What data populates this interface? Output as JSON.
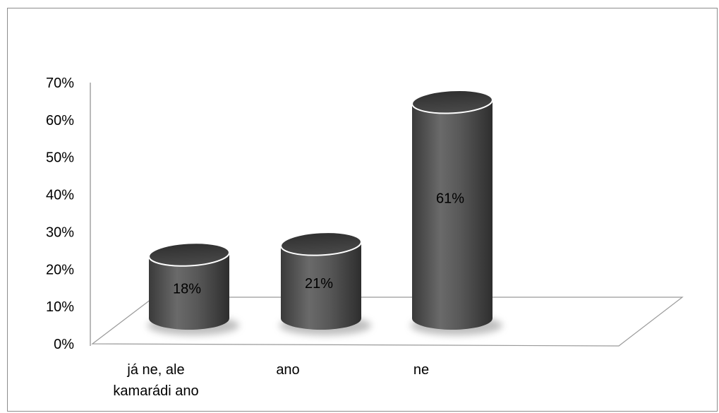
{
  "chart_data": {
    "type": "bar",
    "style": "3d-cylinder",
    "categories": [
      [
        "já ne, ale",
        "kamarádi ano"
      ],
      [
        "ano"
      ],
      [
        "ne"
      ]
    ],
    "values": [
      18,
      21,
      61
    ],
    "data_labels": [
      "18%",
      "21%",
      "61%"
    ],
    "ylim": [
      0,
      70
    ],
    "yticks": [
      "0%",
      "10%",
      "20%",
      "30%",
      "40%",
      "50%",
      "60%",
      "70%"
    ],
    "grid": false,
    "legend": "none",
    "colors": {
      "bar": "#555555",
      "bar_top": "#3a3a3a",
      "axis": "#8c8c8c"
    }
  }
}
